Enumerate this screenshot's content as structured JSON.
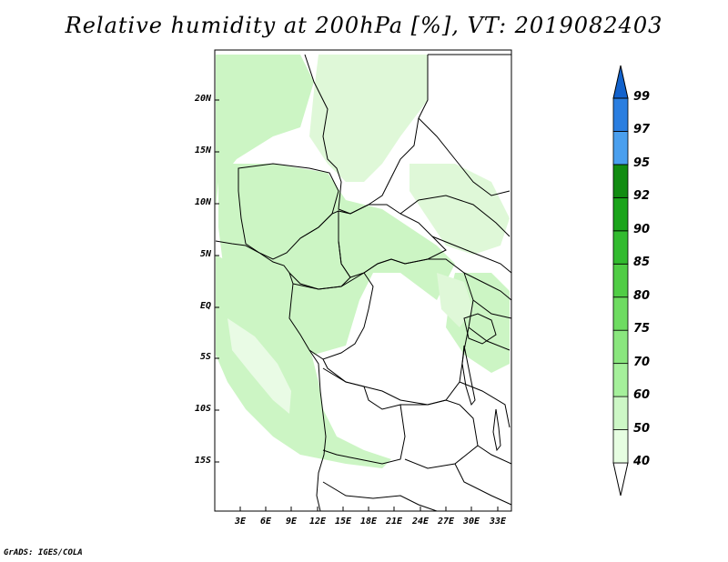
{
  "title": "Relative humidity at 200hPa [%], VT: 2019082403",
  "credit": "GrADS: IGES/COLA",
  "map": {
    "lat_labels": [
      "20N",
      "15N",
      "10N",
      "5N",
      "EQ",
      "5S",
      "10S",
      "15S"
    ],
    "lon_labels": [
      "3E",
      "6E",
      "9E",
      "12E",
      "15E",
      "18E",
      "21E",
      "24E",
      "27E",
      "30E",
      "33E"
    ]
  },
  "colorbar": {
    "levels": [
      "40",
      "50",
      "60",
      "70",
      "75",
      "80",
      "85",
      "90",
      "92",
      "95",
      "97",
      "99"
    ],
    "colors": [
      "#ffffff",
      "#e6fde1",
      "#cdf7c6",
      "#a5f09b",
      "#8ae67e",
      "#6edc61",
      "#50cd45",
      "#32bb2f",
      "#1aa41a",
      "#128c12",
      "#4a9fee",
      "#2a7ee0",
      "#1262cc"
    ]
  }
}
